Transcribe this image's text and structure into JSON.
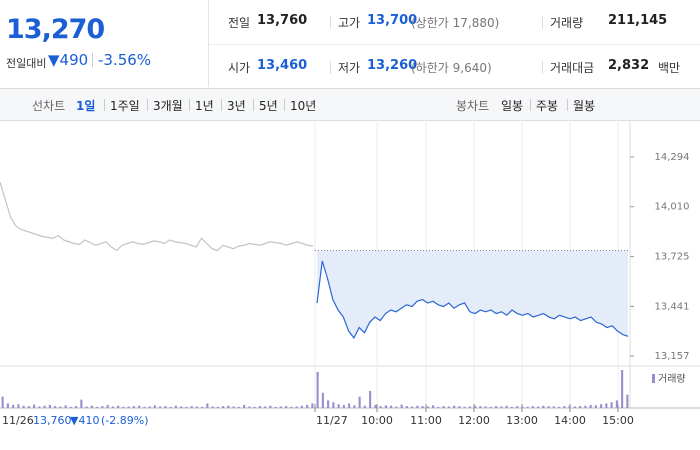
{
  "header": {
    "price": "13,270",
    "change_label": "전일대비",
    "change": "▼490",
    "change_pct": "-3.56%",
    "stats": [
      {
        "label": "전일",
        "value": "13,760"
      },
      {
        "label": "고가",
        "value": "13,700",
        "note": "(상한가 17,880)"
      },
      {
        "label": "거래량",
        "value": "211,145"
      },
      {
        "label": "시가",
        "value": "13,460"
      },
      {
        "label": "저가",
        "value": "13,260",
        "note": "(하한가 9,640)"
      },
      {
        "label": "거래대금",
        "value": "2,832",
        "note": "백만"
      }
    ]
  },
  "tabs": {
    "line_label": "선차트",
    "line": [
      "1일",
      "1주일",
      "3개월",
      "1년",
      "3년",
      "5년",
      "10년"
    ],
    "candle_label": "봉차트",
    "candle": [
      "일봉",
      "주봉",
      "월봉"
    ]
  },
  "footer": {
    "date": "11/26",
    "close": "13,760",
    "change": "▼410",
    "change_pct": "(-2.89%)"
  },
  "chart_data": [
    {
      "type": "line",
      "x_labels": [
        "11/27",
        "10:00",
        "11:00",
        "12:00",
        "13:00",
        "14:00",
        "15:00"
      ],
      "reference_line": 13760,
      "ylim": [
        13106,
        14494
      ],
      "yticks": [
        {
          "value": 14294,
          "label": "14,294"
        },
        {
          "value": 14010,
          "label": "14,010"
        },
        {
          "value": 13725,
          "label": "13,725"
        },
        {
          "value": 13441,
          "label": "13,441"
        },
        {
          "value": 13157,
          "label": "13,157"
        }
      ],
      "series": [
        {
          "color": "#c4c4c4",
          "values": [
            14150,
            14050,
            13950,
            13900,
            13880,
            13870,
            13860,
            13850,
            13840,
            13835,
            13830,
            13845,
            13820,
            13810,
            13800,
            13795,
            13820,
            13805,
            13790,
            13800,
            13810,
            13780,
            13760,
            13790,
            13800,
            13810,
            13800,
            13795,
            13805,
            13815,
            13810,
            13800,
            13820,
            13810,
            13805,
            13800,
            13790,
            13780,
            13830,
            13800,
            13770,
            13760,
            13790,
            13780,
            13770,
            13785,
            13790,
            13800,
            13795,
            13790,
            13800,
            13810,
            13805,
            13800,
            13790,
            13800,
            13810,
            13800,
            13790,
            13785
          ]
        },
        {
          "color": "#2a66d6",
          "values": [
            13460,
            13700,
            13600,
            13480,
            13420,
            13380,
            13300,
            13260,
            13320,
            13290,
            13350,
            13380,
            13360,
            13400,
            13420,
            13410,
            13430,
            13450,
            13440,
            13470,
            13480,
            13460,
            13470,
            13450,
            13440,
            13460,
            13430,
            13450,
            13460,
            13410,
            13400,
            13420,
            13410,
            13420,
            13400,
            13410,
            13390,
            13420,
            13400,
            13390,
            13400,
            13380,
            13390,
            13400,
            13380,
            13370,
            13390,
            13380,
            13370,
            13380,
            13360,
            13370,
            13380,
            13350,
            13340,
            13320,
            13330,
            13300,
            13280,
            13270
          ]
        }
      ]
    },
    {
      "type": "bar",
      "ylim": [
        0,
        100
      ],
      "series": [
        {
          "name": "거래량",
          "color": "#9a8ccf",
          "values": [
            30,
            12,
            8,
            10,
            6,
            5,
            9,
            4,
            6,
            8,
            5,
            4,
            7,
            3,
            5,
            22,
            4,
            6,
            3,
            5,
            8,
            4,
            6,
            3,
            4,
            5,
            6,
            3,
            4,
            7,
            4,
            5,
            3,
            6,
            4,
            3,
            5,
            4,
            3,
            12,
            4,
            3,
            5,
            6,
            4,
            3,
            8,
            4,
            3,
            5,
            4,
            6,
            3,
            4,
            5,
            3,
            4,
            6,
            8,
            12,
            95,
            40,
            20,
            15,
            10,
            8,
            12,
            7,
            30,
            6,
            45,
            8,
            5,
            7,
            6,
            4,
            9,
            5,
            4,
            6,
            5,
            4,
            7,
            3,
            5,
            4,
            6,
            5,
            3,
            4,
            6,
            5,
            4,
            3,
            5,
            4,
            6,
            3,
            5,
            4,
            3,
            5,
            4,
            6,
            5,
            4,
            3,
            5,
            6,
            4,
            5,
            6,
            8,
            7,
            10,
            12,
            15,
            20,
            100,
            35
          ]
        }
      ]
    }
  ]
}
